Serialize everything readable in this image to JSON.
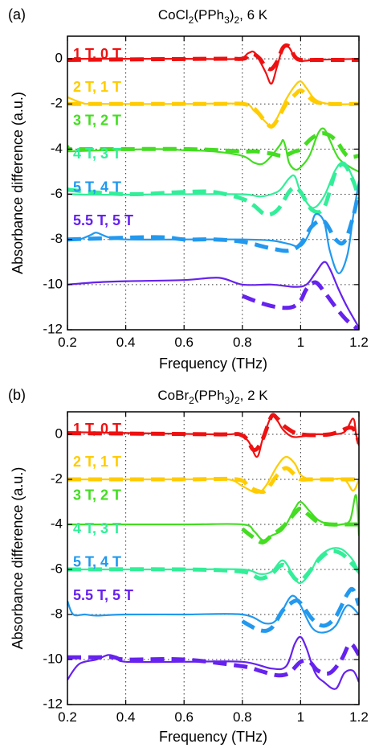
{
  "chart_data": [
    {
      "type": "line",
      "panel_label": "(a)",
      "title_parts": [
        "CoCl",
        "2",
        "(PPh",
        "3",
        ")",
        "2",
        ", 6 K"
      ],
      "xlabel": "Frequency (THz)",
      "ylabel": "Absorbance difference (a.u.)",
      "xlim": [
        0.2,
        1.2
      ],
      "ylim": [
        -12,
        1
      ],
      "xticks": [
        0.2,
        0.4,
        0.6,
        0.8,
        1,
        1.2
      ],
      "xtick_labels": [
        "0.2",
        "0.4",
        "0.6",
        "0.8",
        "1",
        "1.2"
      ],
      "yticks": [
        0,
        -2,
        -4,
        -6,
        -8,
        -10,
        -12
      ],
      "ytick_labels": [
        "0",
        "-2",
        "-4",
        "-6",
        "-8",
        "-10",
        "-12"
      ],
      "grid": "dotted",
      "series": [
        {
          "name": "1 T, 0 T",
          "color": "#ee1111",
          "offset": 0,
          "measured": {
            "x": [
              0.2,
              0.6,
              0.78,
              0.82,
              0.84,
              0.86,
              0.88,
              0.9,
              0.92,
              0.94,
              0.96,
              0.98,
              1.0,
              1.05,
              1.2
            ],
            "y": [
              0,
              0,
              0,
              0.25,
              0.3,
              -0.1,
              -0.6,
              -1.1,
              -0.3,
              0.5,
              0.5,
              0.05,
              -0.1,
              -0.05,
              0
            ]
          },
          "simulated": {
            "x": [
              0.2,
              0.7,
              0.8,
              0.82,
              0.84,
              0.86,
              0.88,
              0.9,
              0.92,
              0.94,
              0.96,
              0.98,
              1.0,
              1.05,
              1.2
            ],
            "y": [
              -0.05,
              0,
              0,
              0.15,
              0.2,
              0.0,
              -0.35,
              -0.45,
              -0.1,
              0.5,
              0.55,
              0.1,
              -0.05,
              -0.05,
              -0.05
            ]
          }
        },
        {
          "name": "2 T, 1 T",
          "color": "#ffcc00",
          "offset": -2,
          "measured": {
            "x": [
              0.2,
              0.25,
              0.3,
              0.6,
              0.8,
              0.84,
              0.88,
              0.9,
              0.92,
              0.95,
              0.98,
              1.0,
              1.02,
              1.05,
              1.1,
              1.2
            ],
            "y": [
              -1.7,
              -1.95,
              -2,
              -2,
              -2,
              -2.3,
              -2.8,
              -3.0,
              -2.6,
              -1.8,
              -1.2,
              -1.0,
              -1.3,
              -1.8,
              -2.0,
              -2.0
            ]
          },
          "simulated": {
            "x": [
              0.2,
              0.7,
              0.8,
              0.84,
              0.88,
              0.9,
              0.92,
              0.95,
              0.98,
              1.0,
              1.02,
              1.05,
              1.1,
              1.2
            ],
            "y": [
              -2,
              -2,
              -2,
              -2.2,
              -2.8,
              -3.0,
              -2.7,
              -2.0,
              -1.6,
              -1.4,
              -1.6,
              -1.9,
              -2.0,
              -2.0
            ]
          }
        },
        {
          "name": "3 T, 2 T",
          "color": "#44dd22",
          "offset": -4,
          "measured": {
            "x": [
              0.2,
              0.5,
              0.6,
              0.7,
              0.8,
              0.84,
              0.87,
              0.9,
              0.93,
              0.94,
              0.95,
              0.96,
              0.98,
              1.0,
              1.03,
              1.06,
              1.08,
              1.1,
              1.13,
              1.17,
              1.2
            ],
            "y": [
              -4.1,
              -4.0,
              -4.05,
              -4.1,
              -4.3,
              -4.6,
              -4.65,
              -4.3,
              -3.8,
              -3.6,
              -4.0,
              -4.6,
              -4.9,
              -4.8,
              -4.3,
              -3.3,
              -3.1,
              -3.6,
              -4.4,
              -4.8,
              -5.0
            ]
          },
          "simulated": {
            "x": [
              0.2,
              0.22,
              0.6,
              0.8,
              0.85,
              0.9,
              0.94,
              0.98,
              1.0,
              1.04,
              1.08,
              1.12,
              1.16,
              1.2
            ],
            "y": [
              -3.9,
              -4.0,
              -4.0,
              -4.1,
              -4.1,
              -4.2,
              -4.3,
              -4.1,
              -4.0,
              -3.5,
              -3.3,
              -3.6,
              -4.3,
              -4.3
            ]
          }
        },
        {
          "name": "4 T, 3 T",
          "color": "#33ee99",
          "offset": -6,
          "measured": {
            "x": [
              0.2,
              0.22,
              0.6,
              0.8,
              0.86,
              0.9,
              0.93,
              0.96,
              0.98,
              1.0,
              1.04,
              1.08,
              1.12,
              1.15,
              1.18,
              1.2
            ],
            "y": [
              -5.7,
              -6.0,
              -6.0,
              -6.0,
              -6.1,
              -6.0,
              -5.8,
              -5.3,
              -5.2,
              -5.9,
              -6.6,
              -6.1,
              -4.9,
              -4.6,
              -5.3,
              -6.0
            ]
          },
          "simulated": {
            "x": [
              0.2,
              0.4,
              0.6,
              0.7,
              0.8,
              0.84,
              0.88,
              0.92,
              0.96,
              0.98,
              1.0,
              1.04,
              1.08,
              1.12,
              1.15,
              1.18,
              1.2
            ],
            "y": [
              -5.8,
              -6.0,
              -5.9,
              -5.9,
              -6.2,
              -6.5,
              -6.9,
              -6.7,
              -5.9,
              -5.7,
              -5.9,
              -6.7,
              -6.6,
              -5.0,
              -4.7,
              -5.4,
              -6.2
            ]
          }
        },
        {
          "name": "5 T, 4 T",
          "color": "#2299ee",
          "offset": -8,
          "measured": {
            "x": [
              0.2,
              0.24,
              0.28,
              0.3,
              0.34,
              0.4,
              0.6,
              0.8,
              0.9,
              0.96,
              1.0,
              1.03,
              1.05,
              1.08,
              1.1,
              1.13,
              1.16,
              1.18,
              1.2
            ],
            "y": [
              -8.0,
              -8.0,
              -7.8,
              -7.7,
              -7.9,
              -8.0,
              -8.0,
              -8.0,
              -8.05,
              -8.2,
              -8.3,
              -7.7,
              -6.9,
              -7.2,
              -8.5,
              -9.5,
              -8.7,
              -7.0,
              -5.4
            ]
          },
          "simulated": {
            "x": [
              0.2,
              0.5,
              0.6,
              0.7,
              0.8,
              0.9,
              0.96,
              1.0,
              1.04,
              1.08,
              1.12,
              1.15,
              1.18,
              1.2
            ],
            "y": [
              -8.0,
              -7.9,
              -8.0,
              -8.0,
              -8.1,
              -8.4,
              -8.5,
              -8.2,
              -7.4,
              -7.2,
              -8.0,
              -8.1,
              -7.0,
              -5.8
            ]
          }
        },
        {
          "name": "5.5 T, 5 T",
          "color": "#6622ee",
          "offset": -10,
          "measured": {
            "x": [
              0.2,
              0.3,
              0.4,
              0.6,
              0.72,
              0.8,
              0.9,
              0.98,
              1.02,
              1.05,
              1.08,
              1.1,
              1.13,
              1.16,
              1.2
            ],
            "y": [
              -10.0,
              -9.9,
              -9.85,
              -9.8,
              -9.7,
              -10.0,
              -10.0,
              -10.1,
              -10.0,
              -9.5,
              -9.0,
              -9.3,
              -10.2,
              -11.0,
              -11.9
            ]
          },
          "simulated": {
            "x": [
              0.8,
              0.86,
              0.92,
              0.97,
              1.0,
              1.02,
              1.05,
              1.08,
              1.12,
              1.16,
              1.2
            ],
            "y": [
              -10.5,
              -10.8,
              -11.0,
              -11.0,
              -10.7,
              -10.2,
              -9.9,
              -10.3,
              -11.0,
              -11.6,
              -12.0
            ]
          }
        }
      ]
    },
    {
      "type": "line",
      "panel_label": "(b)",
      "title_parts": [
        "CoBr",
        "2",
        "(PPh",
        "3",
        ")",
        "2",
        ", 2 K"
      ],
      "xlabel": "Frequency (THz)",
      "ylabel": "Absorbance difference (a.u.)",
      "xlim": [
        0.2,
        1.2
      ],
      "ylim": [
        -12,
        1
      ],
      "xticks": [
        0.2,
        0.4,
        0.6,
        0.8,
        1,
        1.2
      ],
      "xtick_labels": [
        "0.2",
        "0.4",
        "0.6",
        "0.8",
        "1",
        "1.2"
      ],
      "yticks": [
        0,
        -2,
        -4,
        -6,
        -8,
        -10,
        -12
      ],
      "ytick_labels": [
        "0",
        "-2",
        "-4",
        "-6",
        "-8",
        "-10",
        "-12"
      ],
      "grid": "dotted",
      "series": [
        {
          "name": "1 T, 0 T",
          "color": "#ee1111",
          "offset": 0,
          "measured": {
            "x": [
              0.2,
              0.7,
              0.78,
              0.82,
              0.85,
              0.87,
              0.9,
              0.92,
              0.94,
              0.97,
              1.0,
              1.05,
              1.1,
              1.15,
              1.18,
              1.19,
              1.2
            ],
            "y": [
              0.1,
              0.0,
              0.0,
              -0.3,
              -1.0,
              -0.2,
              0.8,
              0.6,
              0.2,
              -0.1,
              -0.1,
              0.0,
              0.0,
              0.1,
              0.7,
              0.0,
              -0.5
            ]
          },
          "simulated": {
            "x": [
              0.2,
              0.7,
              0.8,
              0.84,
              0.87,
              0.9,
              0.92,
              0.95,
              1.0,
              1.1,
              1.17,
              1.19,
              1.2
            ],
            "y": [
              0.05,
              0.0,
              -0.05,
              -0.7,
              -0.2,
              0.8,
              0.7,
              0.3,
              0.0,
              0.0,
              0.3,
              0.0,
              -0.4
            ]
          }
        },
        {
          "name": "2 T, 1 T",
          "color": "#ffcc00",
          "offset": -2,
          "measured": {
            "x": [
              0.2,
              0.6,
              0.75,
              0.8,
              0.85,
              0.88,
              0.92,
              0.95,
              0.98,
              1.0,
              1.03,
              1.05,
              1.1,
              1.15,
              1.18,
              1.2
            ],
            "y": [
              -2.0,
              -2.0,
              -2.0,
              -2.3,
              -2.6,
              -2.3,
              -1.4,
              -1.0,
              -1.3,
              -1.8,
              -2.0,
              -2.0,
              -2.0,
              -2.0,
              -2.5,
              -2.0
            ]
          },
          "simulated": {
            "x": [
              0.2,
              0.6,
              0.78,
              0.82,
              0.85,
              0.88,
              0.92,
              0.95,
              0.98,
              1.0,
              1.03,
              1.1,
              1.2
            ],
            "y": [
              -2.0,
              -2.0,
              -2.0,
              -2.3,
              -2.5,
              -2.5,
              -1.8,
              -1.5,
              -1.8,
              -2.0,
              -2.0,
              -2.0,
              -2.0
            ]
          }
        },
        {
          "name": "3 T, 2 T",
          "color": "#44dd22",
          "offset": -4,
          "measured": {
            "x": [
              0.2,
              0.6,
              0.8,
              0.84,
              0.87,
              0.9,
              0.94,
              0.98,
              1.0,
              1.03,
              1.06,
              1.1,
              1.14,
              1.17,
              1.19,
              1.2
            ],
            "y": [
              -4.0,
              -4.0,
              -4.0,
              -4.3,
              -4.7,
              -4.5,
              -4.2,
              -3.3,
              -3.0,
              -3.4,
              -3.8,
              -4.0,
              -4.0,
              -3.8,
              -2.7,
              -4.5
            ]
          },
          "simulated": {
            "x": [
              0.8,
              0.84,
              0.87,
              0.9,
              0.94,
              0.98,
              1.0,
              1.03,
              1.06,
              1.1,
              1.15,
              1.2
            ],
            "y": [
              -4.2,
              -4.6,
              -4.8,
              -4.5,
              -4.1,
              -3.5,
              -3.3,
              -3.6,
              -3.9,
              -4.0,
              -4.0,
              -4.0
            ]
          }
        },
        {
          "name": "4 T, 3 T",
          "color": "#33ee99",
          "offset": -6,
          "measured": {
            "x": [
              0.2,
              0.6,
              0.8,
              0.86,
              0.9,
              0.94,
              0.98,
              1.0,
              1.03,
              1.06,
              1.1,
              1.14,
              1.18,
              1.2
            ],
            "y": [
              -6.0,
              -6.0,
              -6.0,
              -6.2,
              -6.1,
              -5.6,
              -6.4,
              -6.6,
              -6.2,
              -5.5,
              -5.1,
              -5.1,
              -5.6,
              -6.2
            ]
          },
          "simulated": {
            "x": [
              0.2,
              0.6,
              0.8,
              0.86,
              0.9,
              0.94,
              0.98,
              1.0,
              1.03,
              1.06,
              1.1,
              1.14,
              1.18,
              1.2
            ],
            "y": [
              -6.0,
              -6.0,
              -6.1,
              -6.4,
              -6.2,
              -5.8,
              -6.4,
              -6.5,
              -6.1,
              -5.6,
              -5.2,
              -5.3,
              -5.8,
              -6.1
            ]
          }
        },
        {
          "name": "5 T, 4 T",
          "color": "#2299ee",
          "offset": -8,
          "measured": {
            "x": [
              0.2,
              0.22,
              0.26,
              0.3,
              0.4,
              0.6,
              0.8,
              0.88,
              0.92,
              0.96,
              0.98,
              1.0,
              1.04,
              1.08,
              1.12,
              1.16,
              1.2
            ],
            "y": [
              -7.4,
              -8.0,
              -8.0,
              -8.05,
              -8.0,
              -8.0,
              -8.0,
              -8.4,
              -8.2,
              -7.3,
              -7.2,
              -7.6,
              -8.6,
              -8.8,
              -8.5,
              -7.6,
              -8.0
            ]
          },
          "simulated": {
            "x": [
              0.8,
              0.86,
              0.9,
              0.94,
              0.98,
              1.0,
              1.04,
              1.08,
              1.12,
              1.16,
              1.18,
              1.2
            ],
            "y": [
              -8.3,
              -8.7,
              -8.6,
              -7.8,
              -7.4,
              -7.5,
              -8.2,
              -8.5,
              -8.1,
              -7.1,
              -6.9,
              -7.6
            ]
          }
        },
        {
          "name": "5.5 T, 5 T",
          "color": "#6622ee",
          "offset": -10,
          "measured": {
            "x": [
              0.2,
              0.24,
              0.3,
              0.34,
              0.37,
              0.4,
              0.6,
              0.8,
              0.9,
              0.95,
              0.98,
              1.0,
              1.02,
              1.05,
              1.08,
              1.12,
              1.15,
              1.18,
              1.2
            ],
            "y": [
              -10.9,
              -10.2,
              -10.0,
              -9.8,
              -9.9,
              -10.1,
              -10.1,
              -10.1,
              -10.4,
              -10.3,
              -9.3,
              -9.0,
              -9.5,
              -10.6,
              -11.0,
              -11.3,
              -10.6,
              -10.5,
              -11.0
            ]
          },
          "simulated": {
            "x": [
              0.2,
              0.3,
              0.36,
              0.4,
              0.6,
              0.8,
              0.86,
              0.92,
              0.96,
              1.0,
              1.03,
              1.06,
              1.1,
              1.14,
              1.17,
              1.2
            ],
            "y": [
              -9.9,
              -9.9,
              -9.9,
              -10.0,
              -10.0,
              -10.3,
              -10.5,
              -10.7,
              -10.6,
              -10.1,
              -10.1,
              -10.5,
              -10.6,
              -10.0,
              -9.3,
              -9.8
            ]
          }
        }
      ]
    }
  ]
}
